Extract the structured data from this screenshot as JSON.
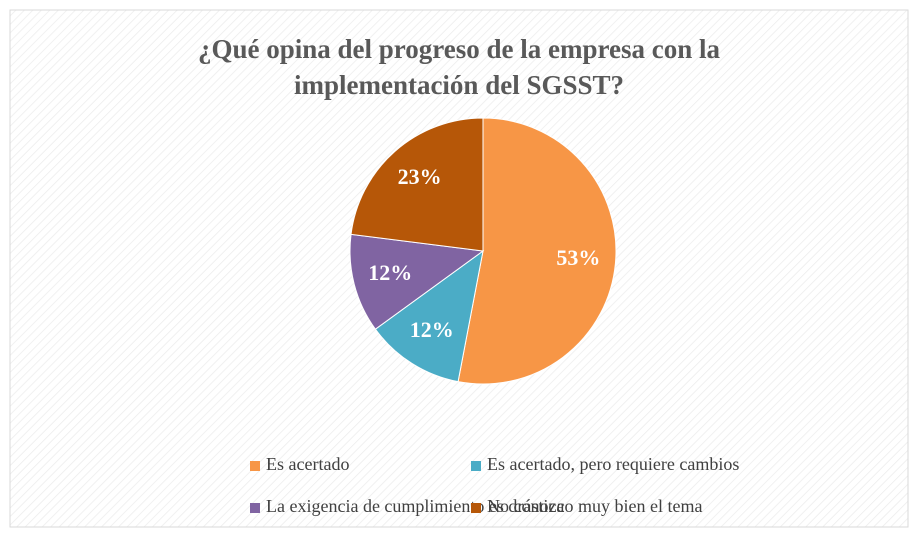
{
  "chart_data": {
    "type": "pie",
    "title": [
      "¿Qué opina del progreso de la empresa con la",
      "implementación del SGSST?"
    ],
    "categories": [
      "Es acertado",
      "Es acertado, pero requiere cambios",
      "La exigencia de cumplimiento es drástica",
      "No conozco muy bien el tema"
    ],
    "values": [
      53,
      12,
      12,
      23
    ],
    "value_labels": [
      "53%",
      "12%",
      "12%",
      "23%"
    ],
    "colors": [
      "#f79646",
      "#4bacc6",
      "#8064a2",
      "#b65708"
    ],
    "legend": "bottom"
  }
}
